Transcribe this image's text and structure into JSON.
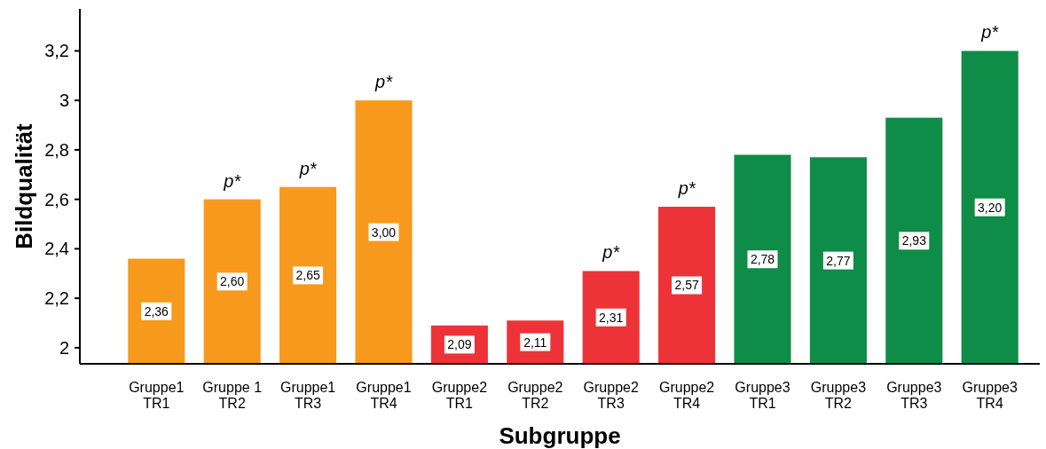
{
  "chart_data": {
    "type": "bar",
    "xlabel": "Subgruppe",
    "ylabel": "Bildqualität",
    "categories": [
      "Gruppe1\nTR1",
      "Gruppe 1\nTR2",
      "Gruppe1\nTR3",
      "Gruppe1\nTR4",
      "Gruppe2\nTR1",
      "Gruppe2\nTR2",
      "Gruppe2\nTR3",
      "Gruppe2\nTR4",
      "Gruppe3\nTR1",
      "Gruppe3\nTR2",
      "Gruppe3\nTR3",
      "Gruppe3\nTR4"
    ],
    "values": [
      2.36,
      2.6,
      2.65,
      3.0,
      2.09,
      2.11,
      2.31,
      2.57,
      2.78,
      2.77,
      2.93,
      3.2
    ],
    "value_labels": [
      "2,36",
      "2,60",
      "2,65",
      "3,00",
      "2,09",
      "2,11",
      "2,31",
      "2,57",
      "2,78",
      "2,77",
      "2,93",
      "3,20"
    ],
    "colors": [
      "#f7991d",
      "#f7991d",
      "#f7991d",
      "#f7991d",
      "#ee3338",
      "#ee3338",
      "#ee3338",
      "#ee3338",
      "#0f8c47",
      "#0f8c47",
      "#0f8c47",
      "#0f8c47"
    ],
    "ylim": [
      1.935,
      3.37
    ],
    "yticks": [
      {
        "value": 2,
        "label": "2"
      },
      {
        "value": 2.2,
        "label": "2,2"
      },
      {
        "value": 2.4,
        "label": "2,4"
      },
      {
        "value": 2.6,
        "label": "2,6"
      },
      {
        "value": 2.8,
        "label": "2,8"
      },
      {
        "value": 3,
        "label": "3"
      },
      {
        "value": 3.2,
        "label": "3,2"
      }
    ],
    "annotations": [
      {
        "text": "p*",
        "x": "Gruppe 1\nTR2",
        "y": 2.6
      },
      {
        "text": "p*",
        "x": "Gruppe1\nTR3",
        "y": 2.65
      },
      {
        "text": "p*",
        "x": "Gruppe1\nTR4",
        "y": 3.0
      },
      {
        "text": "p*",
        "x": "Gruppe2\nTR3",
        "y": 2.31
      },
      {
        "text": "p*",
        "x": "Gruppe2\nTR4",
        "y": 2.57
      },
      {
        "text": "p*",
        "x": "Gruppe3\nTR4",
        "y": 3.2
      }
    ]
  }
}
